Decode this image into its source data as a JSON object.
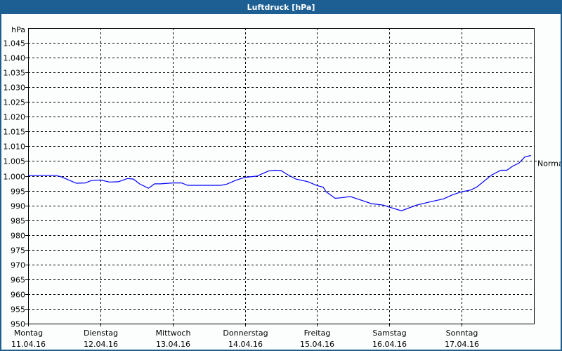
{
  "window": {
    "title": "Luftdruck [hPa]"
  },
  "chart_data": {
    "type": "line",
    "title": "Luftdruck [hPa]",
    "ylabel": "hPa",
    "ylim": [
      950,
      1050
    ],
    "yticks": [
      950,
      955,
      960,
      965,
      970,
      975,
      980,
      985,
      990,
      995,
      1000,
      1005,
      1010,
      1015,
      1020,
      1025,
      1030,
      1035,
      1040,
      1045
    ],
    "ytick_labels": [
      "950",
      "955",
      "960",
      "965",
      "970",
      "975",
      "980",
      "985",
      "990",
      "995",
      "1.000",
      "1.005",
      "1.010",
      "1.015",
      "1.020",
      "1.025",
      "1.030",
      "1.035",
      "1.040",
      "1.045"
    ],
    "xlim": [
      "2016-04-11T00:00",
      "2016-04-18T00:00"
    ],
    "xticks": [
      {
        "date": "2016-04-11T00:00",
        "day": "Montag",
        "label": "11.04.16"
      },
      {
        "date": "2016-04-12T00:00",
        "day": "Dienstag",
        "label": "12.04.16"
      },
      {
        "date": "2016-04-13T00:00",
        "day": "Mittwoch",
        "label": "13.04.16"
      },
      {
        "date": "2016-04-14T00:00",
        "day": "Donnerstag",
        "label": "14.04.16"
      },
      {
        "date": "2016-04-15T00:00",
        "day": "Freitag",
        "label": "15.04.16"
      },
      {
        "date": "2016-04-16T00:00",
        "day": "Samstag",
        "label": "16.04.16"
      },
      {
        "date": "2016-04-17T00:00",
        "day": "Sonntag",
        "label": "17.04.16"
      }
    ],
    "grid": true,
    "reference": {
      "label": "Normal",
      "value": 1005
    },
    "line_color": "#0000ff",
    "series": [
      {
        "x": [
          "2016-04-11T00:00",
          "2016-04-11T03:00",
          "2016-04-11T09:00",
          "2016-04-11T11:00",
          "2016-04-11T16:00",
          "2016-04-11T19:00",
          "2016-04-11T21:00",
          "2016-04-12T00:00",
          "2016-04-12T03:00",
          "2016-04-12T06:00",
          "2016-04-12T09:00",
          "2016-04-12T11:00",
          "2016-04-12T13:00",
          "2016-04-12T16:00",
          "2016-04-12T18:00",
          "2016-04-12T20:00",
          "2016-04-13T00:00",
          "2016-04-13T03:00",
          "2016-04-13T05:00",
          "2016-04-13T16:00",
          "2016-04-13T18:00",
          "2016-04-13T21:00",
          "2016-04-14T00:00",
          "2016-04-14T04:00",
          "2016-04-14T08:00",
          "2016-04-14T10:00",
          "2016-04-14T12:00",
          "2016-04-14T14:00",
          "2016-04-14T17:00",
          "2016-04-14T21:00",
          "2016-04-15T00:00",
          "2016-04-15T02:00",
          "2016-04-15T03:00",
          "2016-04-15T06:00",
          "2016-04-15T08:00",
          "2016-04-15T11:00",
          "2016-04-15T14:00",
          "2016-04-15T18:00",
          "2016-04-15T22:00",
          "2016-04-16T00:00",
          "2016-04-16T04:00",
          "2016-04-16T09:00",
          "2016-04-16T14:00",
          "2016-04-16T18:00",
          "2016-04-16T21:00",
          "2016-04-17T00:00",
          "2016-04-17T03:00",
          "2016-04-17T05:00",
          "2016-04-17T10:00",
          "2016-04-17T13:00",
          "2016-04-17T15:00",
          "2016-04-17T17:00",
          "2016-04-17T19:00",
          "2016-04-17T21:00",
          "2016-04-17T23:00"
        ],
        "y": [
          1000.0,
          1000.2,
          1000.2,
          999.7,
          997.5,
          997.6,
          998.4,
          998.6,
          997.9,
          998.0,
          999.1,
          998.9,
          997.3,
          995.8,
          997.3,
          997.3,
          997.6,
          997.6,
          996.8,
          996.8,
          997.2,
          998.5,
          999.5,
          999.9,
          1001.7,
          1001.9,
          1001.8,
          1000.5,
          998.9,
          998.0,
          996.7,
          996.2,
          994.6,
          992.4,
          992.6,
          993.0,
          992.0,
          990.6,
          990.1,
          989.4,
          988.2,
          990.1,
          991.3,
          992.2,
          993.6,
          994.6,
          995.2,
          996.2,
          1000.3,
          1001.9,
          1001.9,
          1003.3,
          1004.3,
          1006.4,
          1006.9
        ]
      }
    ]
  }
}
